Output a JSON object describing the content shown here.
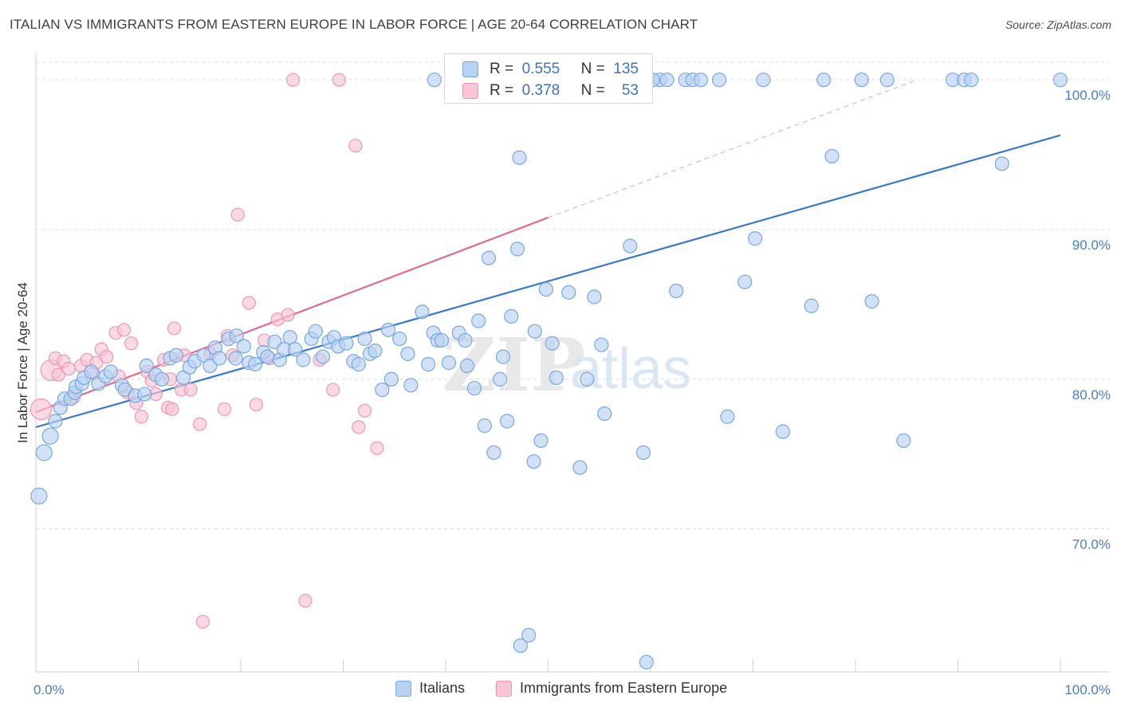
{
  "title": "ITALIAN VS IMMIGRANTS FROM EASTERN EUROPE IN LABOR FORCE | AGE 20-64 CORRELATION CHART",
  "source": "Source: ZipAtlas.com",
  "watermark": {
    "zip": "ZIP",
    "atlas": "atlas"
  },
  "legend_top": {
    "rows": [
      {
        "r_label": "R =",
        "r_value": "0.555",
        "n_label": "N =",
        "n_value": "135"
      },
      {
        "r_label": "R =",
        "r_value": "0.378",
        "n_label": "N =",
        "n_value": "53"
      }
    ]
  },
  "legend_bottom": {
    "items": [
      "Italians",
      "Immigrants from Eastern Europe"
    ]
  },
  "colors": {
    "blue_fill": "#b8d2f2",
    "blue_stroke": "#7aa6e0",
    "blue_line": "#3a78cf",
    "pink_fill": "#f8c5d5",
    "pink_stroke": "#ee97b3",
    "pink_line": "#e26a92",
    "grid": "#dcdcdc",
    "tick_text": "#4a7cc9"
  },
  "chart_data": {
    "type": "scatter",
    "title": "ITALIAN VS IMMIGRANTS FROM EASTERN EUROPE IN LABOR FORCE | AGE 20-64 CORRELATION CHART",
    "xlabel": "",
    "ylabel": "In Labor Force | Age 20-64",
    "x_tick_labels": [
      "0.0%",
      "100.0%"
    ],
    "y_tick_labels": [
      "70.0%",
      "80.0%",
      "90.0%",
      "100.0%"
    ],
    "y_ticks": [
      70,
      80,
      90,
      100
    ],
    "xlim": [
      0,
      100
    ],
    "ylim": [
      60.5,
      101.5
    ],
    "grid": true,
    "legend_placement": "top-center",
    "series": [
      {
        "name": "Italians",
        "r": 0.555,
        "n": 135,
        "trend": {
          "x": [
            0,
            100
          ],
          "y": [
            76.8,
            96.3
          ],
          "dashed_from": null
        },
        "points": [
          [
            0.3,
            72.2
          ],
          [
            0.8,
            75.1
          ],
          [
            1.4,
            76.2
          ],
          [
            1.9,
            77.2
          ],
          [
            2.4,
            78.1
          ],
          [
            2.8,
            78.7
          ],
          [
            3.4,
            78.7
          ],
          [
            3.8,
            79.1
          ],
          [
            3.9,
            79.5
          ],
          [
            4.5,
            79.7
          ],
          [
            4.7,
            80.1
          ],
          [
            5.4,
            80.5
          ],
          [
            6.1,
            79.7
          ],
          [
            6.8,
            80.2
          ],
          [
            7.3,
            80.5
          ],
          [
            8.4,
            79.6
          ],
          [
            8.7,
            79.3
          ],
          [
            9.7,
            78.9
          ],
          [
            10.6,
            79.0
          ],
          [
            10.8,
            80.9
          ],
          [
            11.7,
            80.3
          ],
          [
            12.3,
            80.0
          ],
          [
            13.1,
            81.4
          ],
          [
            13.7,
            81.6
          ],
          [
            14.4,
            80.1
          ],
          [
            15.0,
            80.8
          ],
          [
            15.5,
            81.2
          ],
          [
            16.4,
            81.6
          ],
          [
            17.0,
            80.9
          ],
          [
            17.5,
            82.1
          ],
          [
            17.9,
            81.4
          ],
          [
            18.8,
            82.7
          ],
          [
            19.5,
            81.4
          ],
          [
            19.6,
            82.9
          ],
          [
            20.3,
            82.2
          ],
          [
            20.8,
            81.1
          ],
          [
            21.4,
            81.0
          ],
          [
            22.2,
            81.8
          ],
          [
            22.6,
            81.5
          ],
          [
            23.3,
            82.5
          ],
          [
            23.8,
            81.3
          ],
          [
            24.2,
            82.0
          ],
          [
            24.8,
            82.8
          ],
          [
            25.3,
            82.0
          ],
          [
            26.1,
            81.3
          ],
          [
            26.9,
            82.7
          ],
          [
            27.3,
            83.2
          ],
          [
            28.0,
            81.5
          ],
          [
            28.6,
            82.5
          ],
          [
            29.1,
            82.8
          ],
          [
            29.5,
            82.2
          ],
          [
            30.3,
            82.4
          ],
          [
            31.0,
            81.2
          ],
          [
            31.5,
            81.0
          ],
          [
            32.1,
            82.7
          ],
          [
            32.6,
            81.7
          ],
          [
            33.1,
            81.9
          ],
          [
            33.8,
            79.3
          ],
          [
            34.4,
            83.3
          ],
          [
            34.7,
            80.0
          ],
          [
            35.5,
            82.7
          ],
          [
            36.3,
            81.7
          ],
          [
            36.6,
            79.6
          ],
          [
            37.7,
            84.5
          ],
          [
            38.3,
            81.0
          ],
          [
            38.8,
            83.1
          ],
          [
            39.2,
            82.6
          ],
          [
            39.6,
            82.6
          ],
          [
            40.3,
            81.1
          ],
          [
            41.3,
            83.1
          ],
          [
            41.9,
            82.6
          ],
          [
            42.1,
            80.9
          ],
          [
            42.8,
            79.4
          ],
          [
            43.2,
            83.9
          ],
          [
            43.8,
            76.9
          ],
          [
            44.2,
            88.1
          ],
          [
            44.7,
            75.1
          ],
          [
            45.3,
            80.0
          ],
          [
            45.6,
            81.5
          ],
          [
            46.0,
            77.2
          ],
          [
            46.4,
            84.2
          ],
          [
            47.0,
            88.7
          ],
          [
            47.3,
            62.2
          ],
          [
            48.1,
            62.9
          ],
          [
            48.6,
            74.5
          ],
          [
            48.7,
            83.2
          ],
          [
            49.3,
            75.9
          ],
          [
            49.8,
            86.0
          ],
          [
            50.8,
            80.1
          ],
          [
            52.0,
            85.8
          ],
          [
            53.1,
            74.1
          ],
          [
            53.8,
            80.0
          ],
          [
            54.5,
            85.5
          ],
          [
            55.2,
            82.3
          ],
          [
            55.5,
            77.7
          ],
          [
            55.9,
            100.0
          ],
          [
            56.6,
            100.0
          ],
          [
            58.0,
            88.9
          ],
          [
            59.3,
            75.1
          ],
          [
            59.6,
            61.1
          ],
          [
            60.9,
            100.0
          ],
          [
            61.6,
            100.0
          ],
          [
            62.5,
            85.9
          ],
          [
            63.4,
            100.0
          ],
          [
            64.1,
            100.0
          ],
          [
            64.9,
            100.0
          ],
          [
            66.7,
            100.0
          ],
          [
            67.5,
            77.5
          ],
          [
            69.2,
            86.5
          ],
          [
            70.2,
            89.4
          ],
          [
            71.0,
            100.0
          ],
          [
            72.9,
            76.5
          ],
          [
            75.7,
            84.9
          ],
          [
            76.9,
            100.0
          ],
          [
            77.7,
            94.9
          ],
          [
            80.6,
            100.0
          ],
          [
            81.6,
            85.2
          ],
          [
            83.1,
            100.0
          ],
          [
            84.7,
            75.9
          ],
          [
            89.5,
            100.0
          ],
          [
            90.6,
            100.0
          ],
          [
            91.3,
            100.0
          ],
          [
            94.3,
            94.4
          ],
          [
            100.0,
            100.0
          ],
          [
            50.4,
            82.4
          ],
          [
            38.9,
            100.0
          ],
          [
            52.9,
            100.0
          ],
          [
            47.2,
            94.8
          ],
          [
            60.2,
            100.0
          ]
        ]
      },
      {
        "name": "Immigrants from Eastern Europe",
        "r": 0.378,
        "n": 53,
        "trend": {
          "x": [
            0,
            50,
            86
          ],
          "y": [
            77.8,
            90.8,
            100.0
          ],
          "dashed_from": 50
        },
        "points": [
          [
            0.5,
            78.0
          ],
          [
            1.5,
            80.6
          ],
          [
            1.9,
            81.4
          ],
          [
            2.2,
            80.3
          ],
          [
            2.7,
            81.2
          ],
          [
            3.2,
            80.7
          ],
          [
            3.7,
            78.8
          ],
          [
            4.4,
            80.9
          ],
          [
            5.0,
            81.3
          ],
          [
            5.6,
            80.4
          ],
          [
            5.9,
            81.1
          ],
          [
            6.4,
            82.0
          ],
          [
            6.9,
            81.5
          ],
          [
            7.8,
            83.1
          ],
          [
            8.1,
            80.2
          ],
          [
            8.6,
            83.3
          ],
          [
            9.0,
            79.1
          ],
          [
            9.3,
            82.4
          ],
          [
            9.8,
            78.4
          ],
          [
            10.3,
            77.5
          ],
          [
            10.9,
            80.5
          ],
          [
            11.3,
            79.9
          ],
          [
            11.7,
            79.0
          ],
          [
            12.5,
            81.3
          ],
          [
            12.9,
            78.1
          ],
          [
            13.1,
            80.0
          ],
          [
            13.3,
            78.0
          ],
          [
            13.5,
            83.4
          ],
          [
            14.2,
            79.3
          ],
          [
            14.5,
            81.6
          ],
          [
            15.1,
            79.3
          ],
          [
            16.0,
            77.0
          ],
          [
            16.3,
            63.8
          ],
          [
            17.0,
            81.7
          ],
          [
            18.4,
            78.0
          ],
          [
            18.7,
            82.9
          ],
          [
            19.2,
            81.6
          ],
          [
            19.7,
            91.0
          ],
          [
            20.8,
            85.1
          ],
          [
            21.5,
            78.3
          ],
          [
            22.3,
            82.6
          ],
          [
            22.8,
            81.4
          ],
          [
            23.6,
            84.0
          ],
          [
            24.6,
            84.3
          ],
          [
            26.3,
            65.2
          ],
          [
            27.7,
            81.3
          ],
          [
            29.0,
            79.3
          ],
          [
            29.6,
            100.0
          ],
          [
            31.2,
            95.6
          ],
          [
            31.5,
            76.8
          ],
          [
            32.1,
            77.9
          ],
          [
            33.3,
            75.4
          ],
          [
            25.1,
            100.0
          ]
        ]
      }
    ],
    "annotations": []
  }
}
